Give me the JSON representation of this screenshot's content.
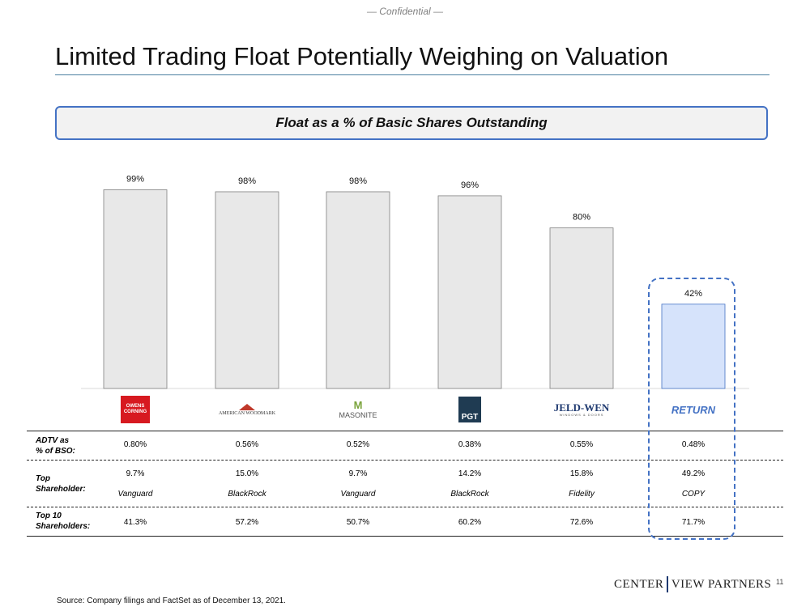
{
  "header": {
    "confidential": "— Confidential —",
    "title": "Limited Trading Float Potentially Weighing on Valuation"
  },
  "banner": {
    "label": "Float as a % of Basic Shares Outstanding"
  },
  "chart_data": {
    "type": "bar",
    "title": "Float as a % of Basic Shares Outstanding",
    "categories": [
      "OWENS CORNING",
      "AMERICAN WOODMARK",
      "MASONITE",
      "PGT",
      "JELD-WEN",
      "RETURN"
    ],
    "values": [
      99,
      98,
      98,
      96,
      80,
      42
    ],
    "data_labels": [
      "99%",
      "98%",
      "98%",
      "96%",
      "80%",
      "42%"
    ],
    "ylim": [
      0,
      100
    ],
    "unit": "%",
    "grid": false,
    "bar_color": "#e8e8e8",
    "highlight_color": "#d6e3fb",
    "highlight_category": "RETURN"
  },
  "logos": {
    "owens_corning": "OWENS CORNING",
    "american_woodmark": "AMERICAN WOODMARK",
    "masonite": "MASONITE",
    "pgt": "PGT",
    "jeldwen": "JELD-WEN",
    "jeldwen_sub": "WINDOWS & DOORS",
    "return": "RETURN"
  },
  "table": {
    "adtv_label": "ADTV as\n% of BSO:",
    "adtv": [
      "0.80%",
      "0.56%",
      "0.52%",
      "0.38%",
      "0.55%",
      "0.48%"
    ],
    "top_label": "Top\nShareholder:",
    "top_pct": [
      "9.7%",
      "15.0%",
      "9.7%",
      "14.2%",
      "15.8%",
      "49.2%"
    ],
    "top_name": [
      "Vanguard",
      "BlackRock",
      "Vanguard",
      "BlackRock",
      "Fidelity",
      "COPY"
    ],
    "top10_label": "Top 10\nShareholders:",
    "top10": [
      "41.3%",
      "57.2%",
      "50.7%",
      "60.2%",
      "72.6%",
      "71.7%"
    ]
  },
  "footer": {
    "brand_left": "CENTER",
    "brand_right": "VIEW PARTNERS",
    "page": "11",
    "source": "Source: Company filings and FactSet as of December 13, 2021."
  },
  "colors": {
    "accent": "#4472C4",
    "return_text": "#4472C4",
    "owens_red": "#d71920",
    "pgt_navy": "#1f3b52",
    "masonite_green": "#7aa33b"
  }
}
